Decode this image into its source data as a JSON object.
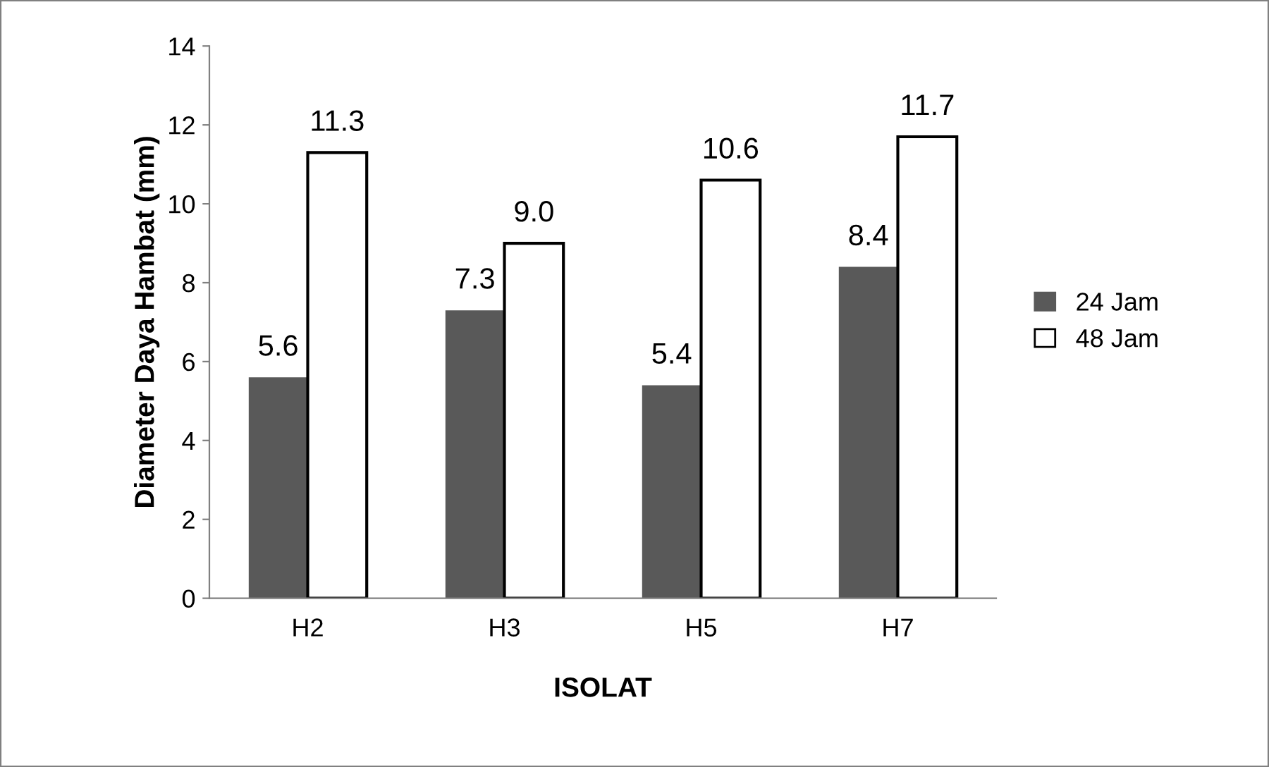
{
  "chart_data": {
    "type": "bar",
    "xlabel": "ISOLAT",
    "ylabel": "Diameter Daya Hambat (mm)",
    "categories": [
      "H2",
      "H3",
      "H5",
      "H7"
    ],
    "series": [
      {
        "name": "24 Jam",
        "color": "#595959",
        "values": [
          5.6,
          7.3,
          5.4,
          8.4
        ]
      },
      {
        "name": "48 Jam",
        "color": "#ffffff",
        "values": [
          11.3,
          9.0,
          10.6,
          11.7
        ]
      }
    ],
    "value_labels": [
      [
        "5.6",
        "7.3",
        "5.4",
        "8.4"
      ],
      [
        "11.3",
        "9.0",
        "10.6",
        "11.7"
      ]
    ],
    "ylim": [
      0,
      14
    ],
    "yticks": [
      0,
      2,
      4,
      6,
      8,
      10,
      12,
      14
    ],
    "grid": false,
    "legend": "right"
  }
}
